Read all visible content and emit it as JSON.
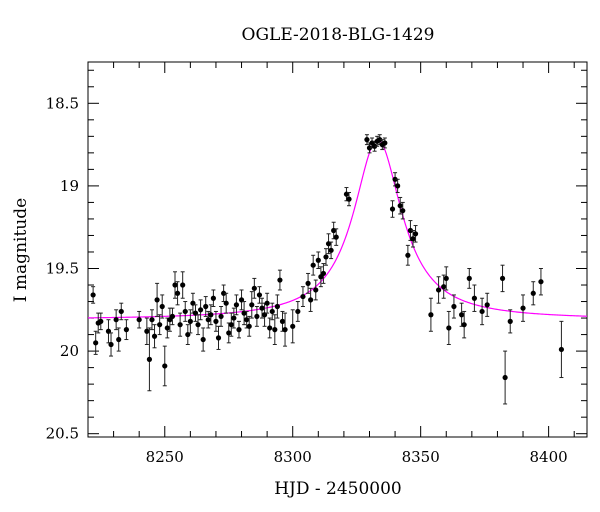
{
  "chart_data": {
    "type": "scatter",
    "title": "OGLE-2018-BLG-1429",
    "xlabel": "HJD - 2450000",
    "ylabel": "I magnitude",
    "xlim": [
      8220,
      8415
    ],
    "ylim": [
      20.52,
      18.25
    ],
    "y_inverted": true,
    "x_ticks": [
      8250,
      8300,
      8350,
      8400
    ],
    "y_ticks": [
      18.5,
      19,
      19.5,
      20,
      20.5
    ],
    "x_tick_labels": [
      "8250",
      "8300",
      "8350",
      "8400"
    ],
    "y_tick_labels": [
      "18.5",
      "19",
      "19.5",
      "20",
      "20.5"
    ],
    "x_minor_step": 10,
    "y_minor_step": 0.1,
    "grid": false,
    "legend": "none",
    "colors": {
      "points": "#000000",
      "model": "#ff00ff"
    },
    "model": {
      "baseline": 19.81,
      "t0": 8333.2,
      "peak_mag": 18.72,
      "width": 11.5,
      "series_color": "#ff00ff"
    },
    "points": [
      {
        "x": 8222,
        "y": 19.66,
        "e": 0.05
      },
      {
        "x": 8223,
        "y": 19.95,
        "e": 0.07
      },
      {
        "x": 8224,
        "y": 19.83,
        "e": 0.06
      },
      {
        "x": 8225,
        "y": 19.82,
        "e": 0.05
      },
      {
        "x": 8228,
        "y": 19.88,
        "e": 0.07
      },
      {
        "x": 8229,
        "y": 19.96,
        "e": 0.07
      },
      {
        "x": 8231,
        "y": 19.81,
        "e": 0.06
      },
      {
        "x": 8232,
        "y": 19.93,
        "e": 0.07
      },
      {
        "x": 8233,
        "y": 19.76,
        "e": 0.05
      },
      {
        "x": 8235,
        "y": 19.87,
        "e": 0.06
      },
      {
        "x": 8240,
        "y": 19.81,
        "e": 0.05
      },
      {
        "x": 8243,
        "y": 19.88,
        "e": 0.08
      },
      {
        "x": 8244,
        "y": 20.05,
        "e": 0.19
      },
      {
        "x": 8245,
        "y": 19.81,
        "e": 0.06
      },
      {
        "x": 8246,
        "y": 19.91,
        "e": 0.07
      },
      {
        "x": 8247,
        "y": 19.69,
        "e": 0.1
      },
      {
        "x": 8248,
        "y": 19.84,
        "e": 0.06
      },
      {
        "x": 8249,
        "y": 19.73,
        "e": 0.07
      },
      {
        "x": 8250,
        "y": 20.09,
        "e": 0.12
      },
      {
        "x": 8251,
        "y": 19.86,
        "e": 0.06
      },
      {
        "x": 8252,
        "y": 19.81,
        "e": 0.07
      },
      {
        "x": 8253,
        "y": 19.79,
        "e": 0.05
      },
      {
        "x": 8254,
        "y": 19.6,
        "e": 0.08
      },
      {
        "x": 8255,
        "y": 19.65,
        "e": 0.07
      },
      {
        "x": 8256,
        "y": 19.84,
        "e": 0.07
      },
      {
        "x": 8257,
        "y": 19.6,
        "e": 0.08
      },
      {
        "x": 8258,
        "y": 19.76,
        "e": 0.06
      },
      {
        "x": 8259,
        "y": 19.9,
        "e": 0.06
      },
      {
        "x": 8260,
        "y": 19.82,
        "e": 0.07
      },
      {
        "x": 8261,
        "y": 19.71,
        "e": 0.06
      },
      {
        "x": 8262,
        "y": 19.77,
        "e": 0.05
      },
      {
        "x": 8263,
        "y": 19.84,
        "e": 0.06
      },
      {
        "x": 8264,
        "y": 19.75,
        "e": 0.06
      },
      {
        "x": 8265,
        "y": 19.93,
        "e": 0.07
      },
      {
        "x": 8266,
        "y": 19.73,
        "e": 0.06
      },
      {
        "x": 8267,
        "y": 19.81,
        "e": 0.05
      },
      {
        "x": 8268,
        "y": 19.78,
        "e": 0.06
      },
      {
        "x": 8269,
        "y": 19.68,
        "e": 0.05
      },
      {
        "x": 8270,
        "y": 19.82,
        "e": 0.06
      },
      {
        "x": 8271,
        "y": 19.92,
        "e": 0.07
      },
      {
        "x": 8272,
        "y": 19.79,
        "e": 0.06
      },
      {
        "x": 8273,
        "y": 19.65,
        "e": 0.05
      },
      {
        "x": 8274,
        "y": 19.71,
        "e": 0.06
      },
      {
        "x": 8275,
        "y": 19.89,
        "e": 0.06
      },
      {
        "x": 8276,
        "y": 19.84,
        "e": 0.07
      },
      {
        "x": 8277,
        "y": 19.8,
        "e": 0.06
      },
      {
        "x": 8278,
        "y": 19.72,
        "e": 0.06
      },
      {
        "x": 8279,
        "y": 19.87,
        "e": 0.05
      },
      {
        "x": 8280,
        "y": 19.69,
        "e": 0.06
      },
      {
        "x": 8281,
        "y": 19.77,
        "e": 0.07
      },
      {
        "x": 8282,
        "y": 19.81,
        "e": 0.05
      },
      {
        "x": 8283,
        "y": 19.85,
        "e": 0.06
      },
      {
        "x": 8284,
        "y": 19.72,
        "e": 0.08
      },
      {
        "x": 8285,
        "y": 19.62,
        "e": 0.06
      },
      {
        "x": 8286,
        "y": 19.79,
        "e": 0.06
      },
      {
        "x": 8287,
        "y": 19.66,
        "e": 0.05
      },
      {
        "x": 8288,
        "y": 19.74,
        "e": 0.06
      },
      {
        "x": 8289,
        "y": 19.78,
        "e": 0.07
      },
      {
        "x": 8290,
        "y": 19.71,
        "e": 0.06
      },
      {
        "x": 8291,
        "y": 19.86,
        "e": 0.06
      },
      {
        "x": 8292,
        "y": 19.76,
        "e": 0.05
      },
      {
        "x": 8293,
        "y": 19.87,
        "e": 0.09
      },
      {
        "x": 8294,
        "y": 19.73,
        "e": 0.07
      },
      {
        "x": 8295,
        "y": 19.57,
        "e": 0.06
      },
      {
        "x": 8296,
        "y": 19.82,
        "e": 0.06
      },
      {
        "x": 8297,
        "y": 19.87,
        "e": 0.1
      },
      {
        "x": 8300,
        "y": 19.85,
        "e": 0.1
      },
      {
        "x": 8302,
        "y": 19.76,
        "e": 0.06
      },
      {
        "x": 8304,
        "y": 19.67,
        "e": 0.06
      },
      {
        "x": 8306,
        "y": 19.59,
        "e": 0.06
      },
      {
        "x": 8307,
        "y": 19.69,
        "e": 0.07
      },
      {
        "x": 8308,
        "y": 19.48,
        "e": 0.06
      },
      {
        "x": 8309,
        "y": 19.63,
        "e": 0.06
      },
      {
        "x": 8310,
        "y": 19.45,
        "e": 0.05
      },
      {
        "x": 8311,
        "y": 19.55,
        "e": 0.06
      },
      {
        "x": 8312,
        "y": 19.53,
        "e": 0.06
      },
      {
        "x": 8313,
        "y": 19.43,
        "e": 0.05
      },
      {
        "x": 8314,
        "y": 19.35,
        "e": 0.06
      },
      {
        "x": 8315,
        "y": 19.39,
        "e": 0.05
      },
      {
        "x": 8316,
        "y": 19.27,
        "e": 0.05
      },
      {
        "x": 8317,
        "y": 19.31,
        "e": 0.05
      },
      {
        "x": 8321,
        "y": 19.05,
        "e": 0.04
      },
      {
        "x": 8322,
        "y": 19.08,
        "e": 0.04
      },
      {
        "x": 8329,
        "y": 18.72,
        "e": 0.03
      },
      {
        "x": 8330,
        "y": 18.77,
        "e": 0.03
      },
      {
        "x": 8331,
        "y": 18.74,
        "e": 0.03
      },
      {
        "x": 8332,
        "y": 18.76,
        "e": 0.03
      },
      {
        "x": 8333,
        "y": 18.73,
        "e": 0.03
      },
      {
        "x": 8334,
        "y": 18.72,
        "e": 0.03
      },
      {
        "x": 8335,
        "y": 18.75,
        "e": 0.03
      },
      {
        "x": 8336,
        "y": 18.74,
        "e": 0.03
      },
      {
        "x": 8339,
        "y": 19.14,
        "e": 0.05
      },
      {
        "x": 8340,
        "y": 18.96,
        "e": 0.04
      },
      {
        "x": 8341,
        "y": 19.0,
        "e": 0.04
      },
      {
        "x": 8342,
        "y": 19.12,
        "e": 0.05
      },
      {
        "x": 8343,
        "y": 19.15,
        "e": 0.05
      },
      {
        "x": 8345,
        "y": 19.42,
        "e": 0.06
      },
      {
        "x": 8346,
        "y": 19.27,
        "e": 0.06
      },
      {
        "x": 8347,
        "y": 19.32,
        "e": 0.05
      },
      {
        "x": 8348,
        "y": 19.29,
        "e": 0.05
      },
      {
        "x": 8354,
        "y": 19.78,
        "e": 0.1
      },
      {
        "x": 8357,
        "y": 19.63,
        "e": 0.08
      },
      {
        "x": 8359,
        "y": 19.61,
        "e": 0.07
      },
      {
        "x": 8360,
        "y": 19.56,
        "e": 0.07
      },
      {
        "x": 8361,
        "y": 19.86,
        "e": 0.1
      },
      {
        "x": 8363,
        "y": 19.73,
        "e": 0.07
      },
      {
        "x": 8366,
        "y": 19.78,
        "e": 0.07
      },
      {
        "x": 8367,
        "y": 19.84,
        "e": 0.08
      },
      {
        "x": 8369,
        "y": 19.56,
        "e": 0.06
      },
      {
        "x": 8371,
        "y": 19.68,
        "e": 0.08
      },
      {
        "x": 8374,
        "y": 19.76,
        "e": 0.08
      },
      {
        "x": 8376,
        "y": 19.72,
        "e": 0.07
      },
      {
        "x": 8382,
        "y": 19.56,
        "e": 0.08
      },
      {
        "x": 8383,
        "y": 20.16,
        "e": 0.16
      },
      {
        "x": 8385,
        "y": 19.82,
        "e": 0.07
      },
      {
        "x": 8390,
        "y": 19.74,
        "e": 0.08
      },
      {
        "x": 8394,
        "y": 19.65,
        "e": 0.07
      },
      {
        "x": 8397,
        "y": 19.58,
        "e": 0.08
      },
      {
        "x": 8405,
        "y": 19.99,
        "e": 0.17
      }
    ]
  }
}
